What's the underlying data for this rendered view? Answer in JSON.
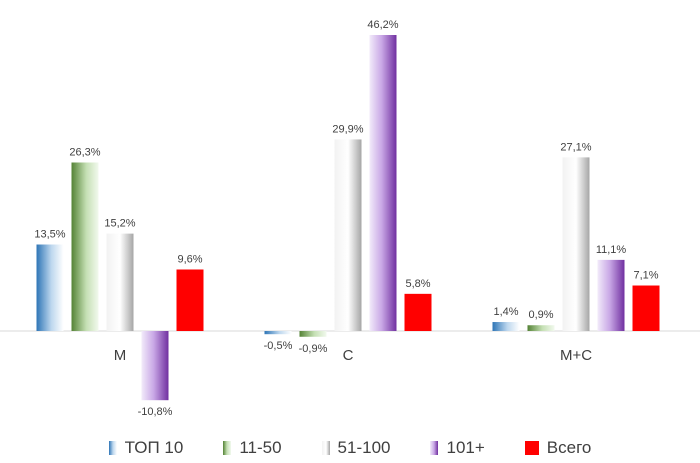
{
  "chart_data": {
    "type": "bar",
    "categories": [
      "М",
      "С",
      "М+С"
    ],
    "series": [
      {
        "name": "ТОП 10",
        "values": [
          13.5,
          -0.5,
          1.4
        ],
        "labels": [
          "13,5%",
          "-0,5%",
          "1,4%"
        ],
        "color": "#5b9bd5"
      },
      {
        "name": "11-50",
        "values": [
          26.3,
          -0.9,
          0.9
        ],
        "labels": [
          "26,3%",
          "-0,9%",
          "0,9%"
        ],
        "color": "#70ad47"
      },
      {
        "name": "51-100",
        "values": [
          15.2,
          29.9,
          27.1
        ],
        "labels": [
          "15,2%",
          "29,9%",
          "27,1%"
        ],
        "color": "#bfbfbf"
      },
      {
        "name": "101+",
        "values": [
          -10.8,
          46.2,
          11.1
        ],
        "labels": [
          "-10,8%",
          "46,2%",
          "11,1%"
        ],
        "color": "#7030a0"
      },
      {
        "name": "Всего",
        "values": [
          9.6,
          5.8,
          7.1
        ],
        "labels": [
          "9,6%",
          "5,8%",
          "7,1%"
        ],
        "color": "#ff0000"
      }
    ],
    "legend_position": "bottom",
    "grid": false
  },
  "legend": {
    "items": [
      {
        "label": "ТОП 10"
      },
      {
        "label": "11-50"
      },
      {
        "label": "51-100"
      },
      {
        "label": "101+"
      },
      {
        "label": "Всего"
      }
    ]
  }
}
